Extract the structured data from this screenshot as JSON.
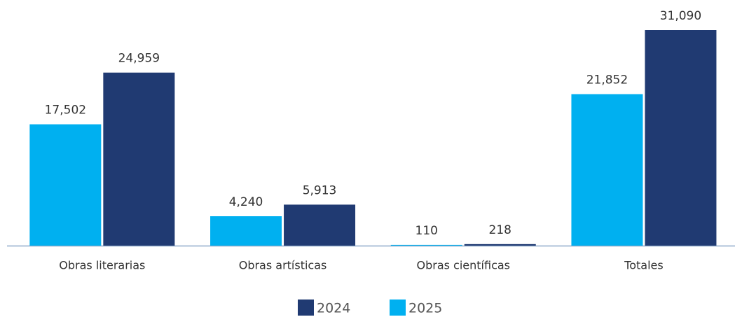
{
  "chart_data": {
    "type": "bar",
    "categories": [
      "Obras literarias",
      "Obras artísticas",
      "Obras científicas",
      "Totales"
    ],
    "series": [
      {
        "name": "2024",
        "color": "#203a72",
        "values": [
          24959,
          5913,
          218,
          31090
        ],
        "value_labels": [
          "24,959",
          "5,913",
          "218",
          "31,090"
        ]
      },
      {
        "name": "2025",
        "color": "#00b0f0",
        "values": [
          17502,
          4240,
          110,
          21852
        ],
        "value_labels": [
          "17,502",
          "4,240",
          "110",
          "21,852"
        ]
      }
    ]
  }
}
